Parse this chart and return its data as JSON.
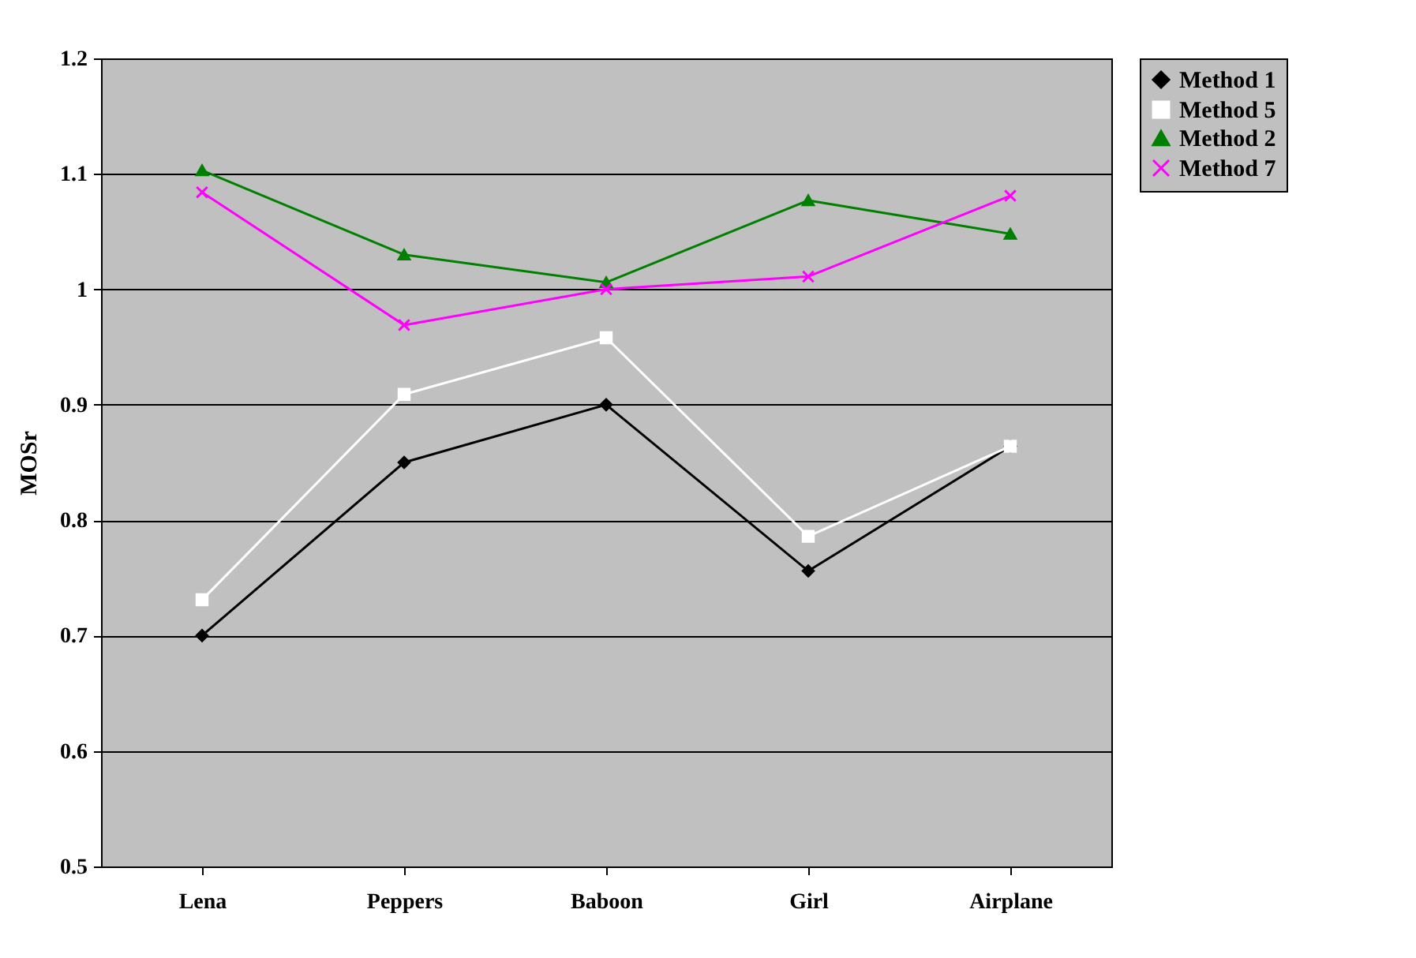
{
  "chart_data": {
    "type": "line",
    "ylabel": "MOSr",
    "categories": [
      "Lena",
      "Peppers",
      "Baboon",
      "Girl",
      "Airplane"
    ],
    "series": [
      {
        "name": "Method 1",
        "color": "#000000",
        "marker": "diamond",
        "values": [
          0.7,
          0.85,
          0.9,
          0.756,
          0.864
        ]
      },
      {
        "name": "Method 5",
        "color": "#ffffff",
        "marker": "square",
        "values": [
          0.731,
          0.909,
          0.958,
          0.786,
          0.864
        ]
      },
      {
        "name": "Method 2",
        "color": "#008000",
        "marker": "triangle",
        "values": [
          1.103,
          1.03,
          1.006,
          1.077,
          1.048
        ]
      },
      {
        "name": "Method 7",
        "color": "#ff00ff",
        "marker": "cross",
        "values": [
          1.084,
          0.969,
          1.0,
          1.011,
          1.081
        ]
      }
    ],
    "ylim": [
      0.5,
      1.2
    ],
    "yticks": [
      0.5,
      0.6,
      0.7,
      0.8,
      0.9,
      1,
      1.1,
      1.2
    ],
    "grid": "y",
    "legend": "right",
    "line_style": "solid"
  }
}
